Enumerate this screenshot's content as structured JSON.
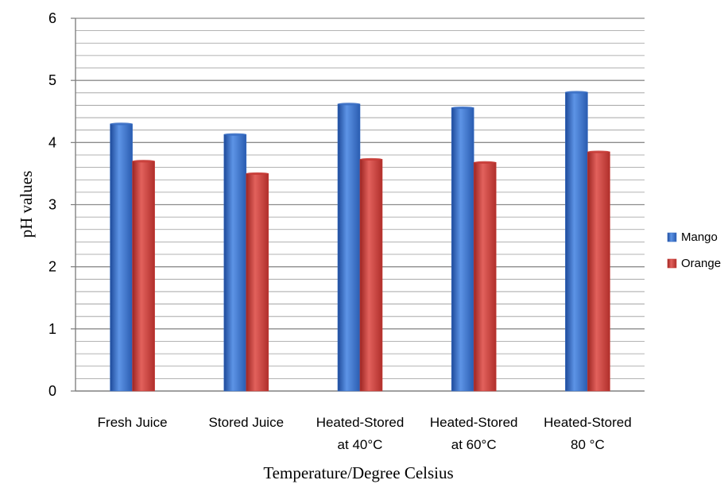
{
  "chart_data": {
    "type": "bar",
    "title": "",
    "xlabel": "Temperature/Degree Celsius",
    "ylabel": "pH values",
    "ylim": [
      0,
      6
    ],
    "yticks": [
      "0",
      "1",
      "2",
      "3",
      "4",
      "5",
      "6"
    ],
    "minor_grid_step": 0.2,
    "grid": true,
    "legend_position": "right",
    "categories": [
      [
        "Fresh Juice"
      ],
      [
        "Stored Juice"
      ],
      [
        "Heated-Stored",
        "at 40°C"
      ],
      [
        "Heated-Stored",
        "at 60°C"
      ],
      [
        "Heated-Stored",
        "80 °C"
      ]
    ],
    "series": [
      {
        "name": "Mango",
        "color": "#3a6fc4",
        "values": [
          4.3,
          4.13,
          4.62,
          4.56,
          4.81
        ]
      },
      {
        "name": "Orange",
        "color": "#c73b36",
        "values": [
          3.7,
          3.5,
          3.73,
          3.68,
          3.85
        ]
      }
    ]
  }
}
